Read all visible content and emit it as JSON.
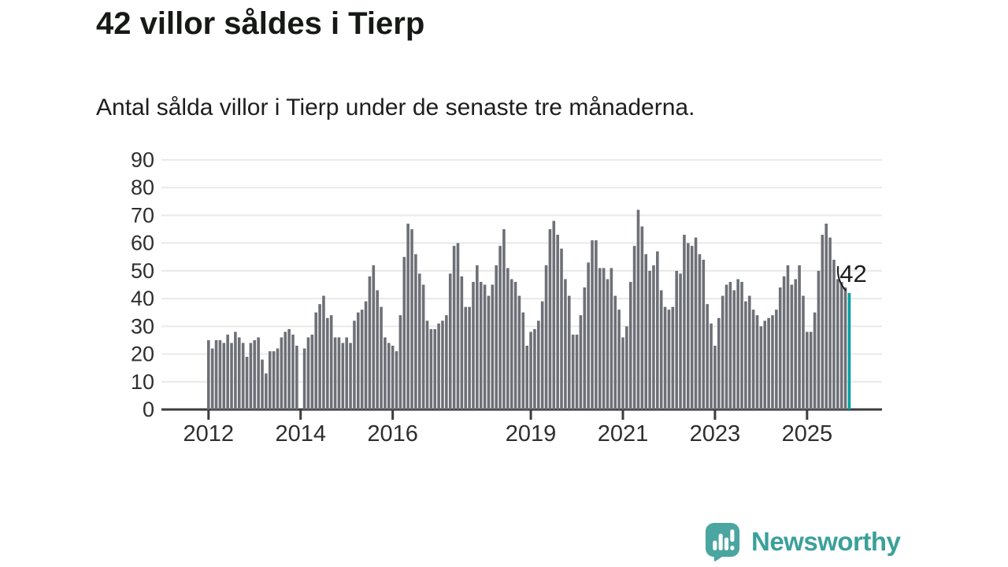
{
  "header": {
    "title": "42 villor såldes i Tierp",
    "subtitle": "Antal sålda villor i Tierp under de senaste tre månaderna."
  },
  "chart_data": {
    "type": "bar",
    "title": "42 villor såldes i Tierp",
    "subtitle": "Antal sålda villor i Tierp under de senaste tre månaderna.",
    "x_start": "2012-01",
    "x_unit": "month",
    "ylim": [
      0,
      90
    ],
    "y_ticks": [
      0,
      10,
      20,
      30,
      40,
      50,
      60,
      70,
      80,
      90
    ],
    "grid": true,
    "legend": "none",
    "x_ticks": [
      {
        "label": "2012",
        "month_index": 0
      },
      {
        "label": "2014",
        "month_index": 24
      },
      {
        "label": "2016",
        "month_index": 48
      },
      {
        "label": "2019",
        "month_index": 84
      },
      {
        "label": "2021",
        "month_index": 108
      },
      {
        "label": "2023",
        "month_index": 132
      },
      {
        "label": "2025",
        "month_index": 156
      }
    ],
    "values": [
      25,
      22,
      25,
      25,
      24,
      27,
      24,
      28,
      26,
      24,
      19,
      24,
      25,
      26,
      18,
      13,
      21,
      21,
      22,
      26,
      28,
      29,
      27,
      23,
      0,
      22,
      26,
      27,
      35,
      38,
      41,
      33,
      34,
      26,
      26,
      24,
      26,
      24,
      32,
      35,
      36,
      39,
      48,
      52,
      43,
      37,
      26,
      24,
      23,
      21,
      34,
      55,
      67,
      65,
      56,
      49,
      45,
      32,
      29,
      29,
      31,
      32,
      34,
      49,
      59,
      60,
      48,
      37,
      37,
      46,
      52,
      46,
      45,
      41,
      45,
      52,
      59,
      65,
      51,
      47,
      46,
      41,
      35,
      23,
      28,
      29,
      32,
      39,
      52,
      65,
      68,
      63,
      58,
      47,
      41,
      27,
      27,
      34,
      44,
      53,
      61,
      61,
      51,
      51,
      47,
      51,
      41,
      36,
      26,
      30,
      46,
      59,
      72,
      66,
      56,
      50,
      52,
      57,
      43,
      37,
      36,
      37,
      50,
      49,
      63,
      60,
      59,
      62,
      56,
      54,
      38,
      31,
      23,
      33,
      41,
      45,
      46,
      43,
      47,
      46,
      39,
      41,
      36,
      34,
      30,
      32,
      33,
      34,
      36,
      44,
      48,
      52,
      45,
      47,
      52,
      41,
      28,
      28,
      35,
      50,
      63,
      67,
      62,
      54,
      47,
      46,
      44,
      42
    ],
    "highlight_last_bar": true,
    "annotation": {
      "label": "42",
      "value": 42
    },
    "colors": {
      "bar": "#6e7077",
      "highlight": "#00a0a1",
      "grid": "#e9e9e9",
      "axis": "#3c3c3c",
      "tick_text": "#2e2e2e",
      "annotation_text": "#1d1d1d"
    }
  },
  "branding": {
    "logo_text": "Newsworthy",
    "logo_icon": "newsworthy-chart-bubble-icon",
    "text_color": "#3aa09a",
    "icon_color": "#4ba5a0"
  }
}
